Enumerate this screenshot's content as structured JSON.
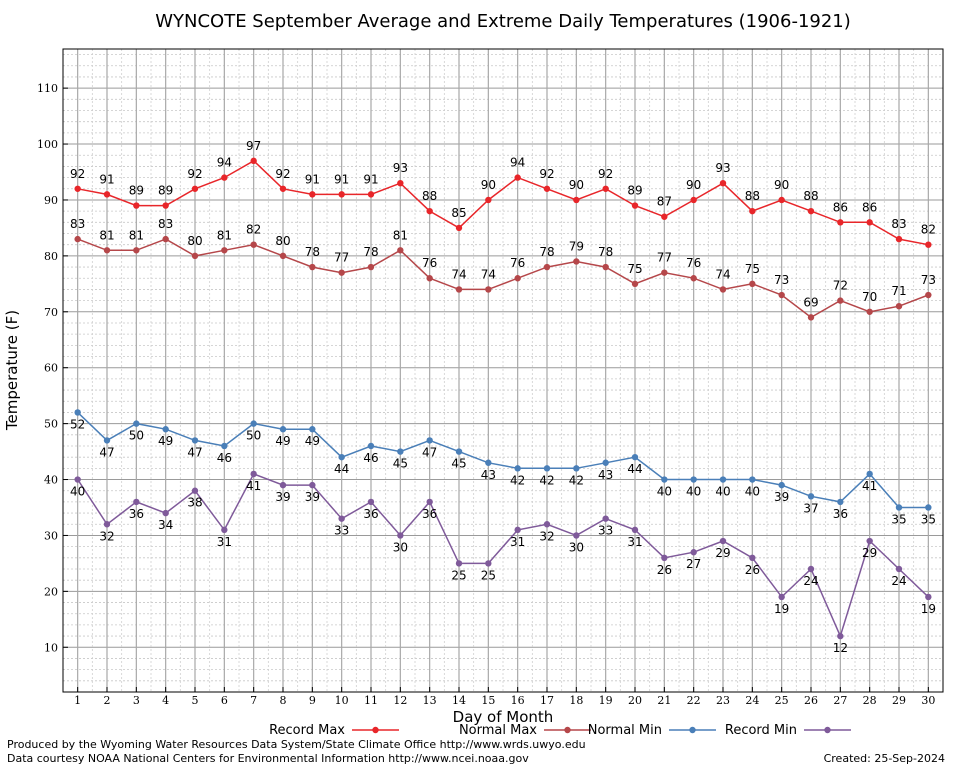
{
  "chart_data": {
    "type": "line",
    "title": "WYNCOTE September Average and Extreme Daily Temperatures (1906-1921)",
    "xlabel": "Day of Month",
    "ylabel": "Temperature (F)",
    "x": [
      1,
      2,
      3,
      4,
      5,
      6,
      7,
      8,
      9,
      10,
      11,
      12,
      13,
      14,
      15,
      16,
      17,
      18,
      19,
      20,
      21,
      22,
      23,
      24,
      25,
      26,
      27,
      28,
      29,
      30
    ],
    "xlim": [
      0.5,
      30.5
    ],
    "ylim": [
      2,
      117
    ],
    "yticks": [
      10,
      20,
      30,
      40,
      50,
      60,
      70,
      80,
      90,
      100,
      110
    ],
    "grid": true,
    "legend_position": "bottom",
    "series": [
      {
        "name": "Record Max",
        "color": "#e8262a",
        "values": [
          92,
          91,
          89,
          89,
          92,
          94,
          97,
          92,
          91,
          91,
          91,
          93,
          88,
          85,
          90,
          94,
          92,
          90,
          92,
          89,
          87,
          90,
          93,
          88,
          90,
          88,
          86,
          86,
          83,
          82
        ]
      },
      {
        "name": "Normal Max",
        "color": "#b5474a",
        "values": [
          83,
          81,
          81,
          83,
          80,
          81,
          82,
          80,
          78,
          77,
          78,
          81,
          76,
          74,
          74,
          76,
          78,
          79,
          78,
          75,
          77,
          76,
          74,
          75,
          73,
          69,
          72,
          70,
          71,
          73
        ]
      },
      {
        "name": "Normal Min",
        "color": "#4a7fb8",
        "values": [
          52,
          47,
          50,
          49,
          47,
          46,
          50,
          49,
          49,
          44,
          46,
          45,
          47,
          45,
          43,
          42,
          42,
          42,
          43,
          44,
          40,
          40,
          40,
          40,
          39,
          37,
          36,
          41,
          35,
          35
        ]
      },
      {
        "name": "Record Min",
        "color": "#7f5a9a",
        "values": [
          40,
          32,
          36,
          34,
          38,
          31,
          41,
          39,
          39,
          33,
          36,
          30,
          36,
          25,
          25,
          31,
          32,
          30,
          33,
          31,
          26,
          27,
          29,
          26,
          19,
          24,
          12,
          29,
          24,
          19
        ]
      }
    ]
  },
  "footer": {
    "produced_by": "Produced by the Wyoming Water Resources Data System/State Climate Office http://www.wrds.uwyo.edu",
    "courtesy": "Data courtesy NOAA National Centers for Environmental Information http://www.ncei.noaa.gov",
    "created": "Created:  25-Sep-2024"
  }
}
